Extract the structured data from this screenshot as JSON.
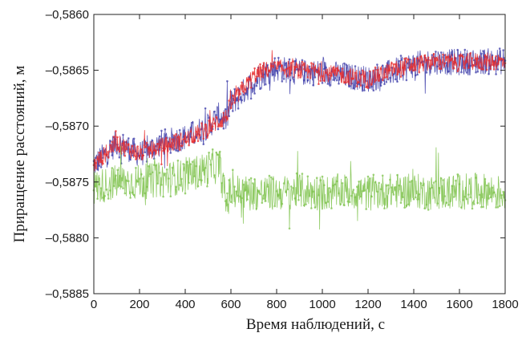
{
  "chart_data": {
    "type": "line",
    "xlabel": "Время наблюдений, с",
    "ylabel": "Приращение расстояний, м",
    "xlim": [
      0,
      1800
    ],
    "ylim": [
      -0.5885,
      -0.586
    ],
    "xticks": [
      0,
      200,
      400,
      600,
      800,
      1000,
      1200,
      1400,
      1600,
      1800
    ],
    "xtick_labels": [
      "0",
      "200",
      "400",
      "600",
      "800",
      "1000",
      "1200",
      "1400",
      "1600",
      "1800"
    ],
    "yticks": [
      -0.586,
      -0.5865,
      -0.587,
      -0.5875,
      -0.588,
      -0.5885
    ],
    "ytick_labels": [
      "–0,5860",
      "–0,5865",
      "–0,5870",
      "–0,5875",
      "–0,5880",
      "–0,5885"
    ],
    "grid": false,
    "series": [
      {
        "color": "#3a3aa8",
        "x": [
          0,
          100,
          200,
          300,
          400,
          500,
          550,
          580,
          600,
          650,
          700,
          750,
          800,
          900,
          1000,
          1100,
          1200,
          1300,
          1400,
          1500,
          1600,
          1700,
          1800
        ],
        "values": [
          -0.58735,
          -0.58715,
          -0.58725,
          -0.58715,
          -0.5871,
          -0.587,
          -0.5869,
          -0.58695,
          -0.5868,
          -0.5867,
          -0.5866,
          -0.58652,
          -0.58648,
          -0.58652,
          -0.58652,
          -0.58655,
          -0.58658,
          -0.58652,
          -0.58645,
          -0.58642,
          -0.58643,
          -0.58642,
          -0.58642
        ]
      },
      {
        "color": "#e82a2a",
        "x": [
          0,
          100,
          200,
          300,
          400,
          500,
          550,
          580,
          600,
          650,
          700,
          750,
          800,
          900,
          1000,
          1100,
          1200,
          1300,
          1400,
          1500,
          1600,
          1700,
          1800
        ],
        "values": [
          -0.58735,
          -0.58715,
          -0.58725,
          -0.58718,
          -0.58712,
          -0.58702,
          -0.58695,
          -0.58692,
          -0.5868,
          -0.58668,
          -0.58655,
          -0.5865,
          -0.58648,
          -0.5865,
          -0.58652,
          -0.58655,
          -0.58658,
          -0.5865,
          -0.58645,
          -0.58642,
          -0.58643,
          -0.58642,
          -0.58642
        ]
      },
      {
        "color": "#7cc24a",
        "x": [
          0,
          100,
          200,
          300,
          400,
          500,
          550,
          580,
          600,
          700,
          800,
          900,
          1000,
          1100,
          1200,
          1300,
          1400,
          1500,
          1600,
          1700,
          1800
        ],
        "values": [
          -0.58755,
          -0.5875,
          -0.5875,
          -0.58748,
          -0.58745,
          -0.58738,
          -0.58735,
          -0.5877,
          -0.58758,
          -0.5876,
          -0.5876,
          -0.58758,
          -0.5876,
          -0.58758,
          -0.5876,
          -0.58758,
          -0.58758,
          -0.5876,
          -0.58758,
          -0.58758,
          -0.5876
        ]
      }
    ]
  }
}
